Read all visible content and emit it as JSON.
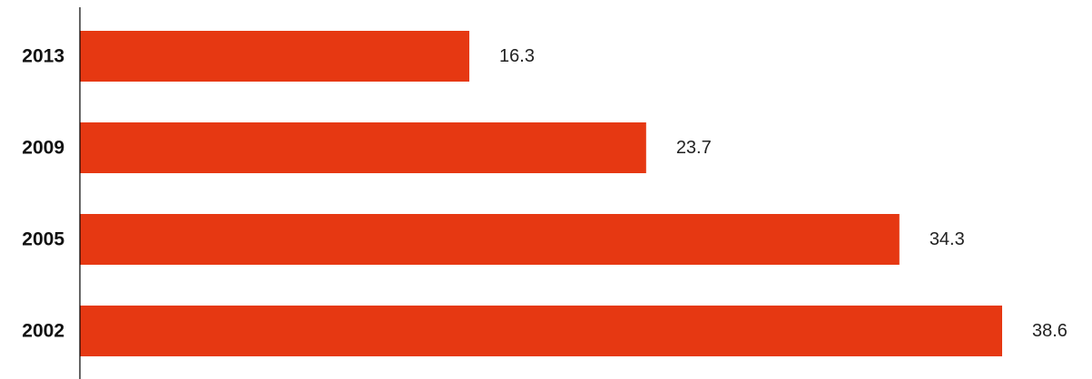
{
  "chart_data": {
    "type": "bar",
    "orientation": "horizontal",
    "categories": [
      "2013",
      "2009",
      "2005",
      "2002"
    ],
    "values": [
      16.3,
      23.7,
      34.3,
      38.6
    ],
    "value_labels": [
      "16.3",
      "23.7",
      "34.3",
      "38.6"
    ],
    "title": "",
    "xlabel": "",
    "ylabel": "",
    "xlim": [
      0,
      38.6
    ],
    "grid": false,
    "legend": "none",
    "colors": {
      "bar": "#e63812",
      "axis": "#000000"
    }
  }
}
